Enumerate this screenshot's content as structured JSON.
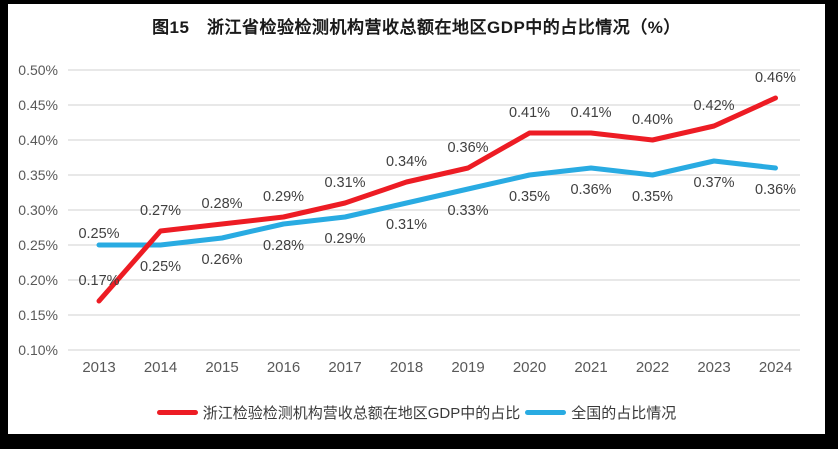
{
  "title": "图15　浙江省检验检测机构营收总额在地区GDP中的占比情况（%）",
  "colors": {
    "zhejiang": "#ED1C24",
    "national": "#29ABE2",
    "grid": "#D9D9D9",
    "axis_text": "#595959",
    "label_text": "#404040",
    "frame": "#000000",
    "background": "#FFFFFF"
  },
  "legend": {
    "zhejiang": "浙江检验检测机构营收总额在地区GDP中的占比",
    "national": "全国的占比情况"
  },
  "chart_data": {
    "type": "line",
    "title": "图15　浙江省检验检测机构营收总额在地区GDP中的占比情况（%）",
    "categories": [
      "2013",
      "2014",
      "2015",
      "2016",
      "2017",
      "2018",
      "2019",
      "2020",
      "2021",
      "2022",
      "2023",
      "2024"
    ],
    "series": [
      {
        "name": "浙江检验检测机构营收总额在地区GDP中的占比",
        "color_key": "zhejiang",
        "values": [
          0.17,
          0.27,
          0.28,
          0.29,
          0.31,
          0.34,
          0.36,
          0.41,
          0.41,
          0.4,
          0.42,
          0.46
        ],
        "labels": [
          "0.17%",
          "0.27%",
          "0.28%",
          "0.29%",
          "0.31%",
          "0.34%",
          "0.36%",
          "0.41%",
          "0.41%",
          "0.40%",
          "0.42%",
          "0.46%"
        ],
        "label_position": "above"
      },
      {
        "name": "全国的占比情况",
        "color_key": "national",
        "values": [
          0.25,
          0.25,
          0.26,
          0.28,
          0.29,
          0.31,
          0.33,
          0.35,
          0.36,
          0.35,
          0.37,
          0.36
        ],
        "labels": [
          "0.25%",
          "0.25%",
          "0.26%",
          "0.28%",
          "0.29%",
          "0.31%",
          "0.33%",
          "0.35%",
          "0.36%",
          "0.35%",
          "0.37%",
          "0.36%"
        ],
        "label_position": "below",
        "label_position_overrides": {
          "0": "above"
        }
      }
    ],
    "xlabel": "",
    "ylabel": "",
    "y_ticks": [
      "0.50%",
      "0.45%",
      "0.40%",
      "0.35%",
      "0.30%",
      "0.25%",
      "0.20%",
      "0.15%",
      "0.10%"
    ],
    "y_tick_values": [
      0.5,
      0.45,
      0.4,
      0.35,
      0.3,
      0.25,
      0.2,
      0.15,
      0.1
    ],
    "ylim": [
      0.1,
      0.5
    ],
    "grid": true,
    "legend_position": "bottom"
  }
}
